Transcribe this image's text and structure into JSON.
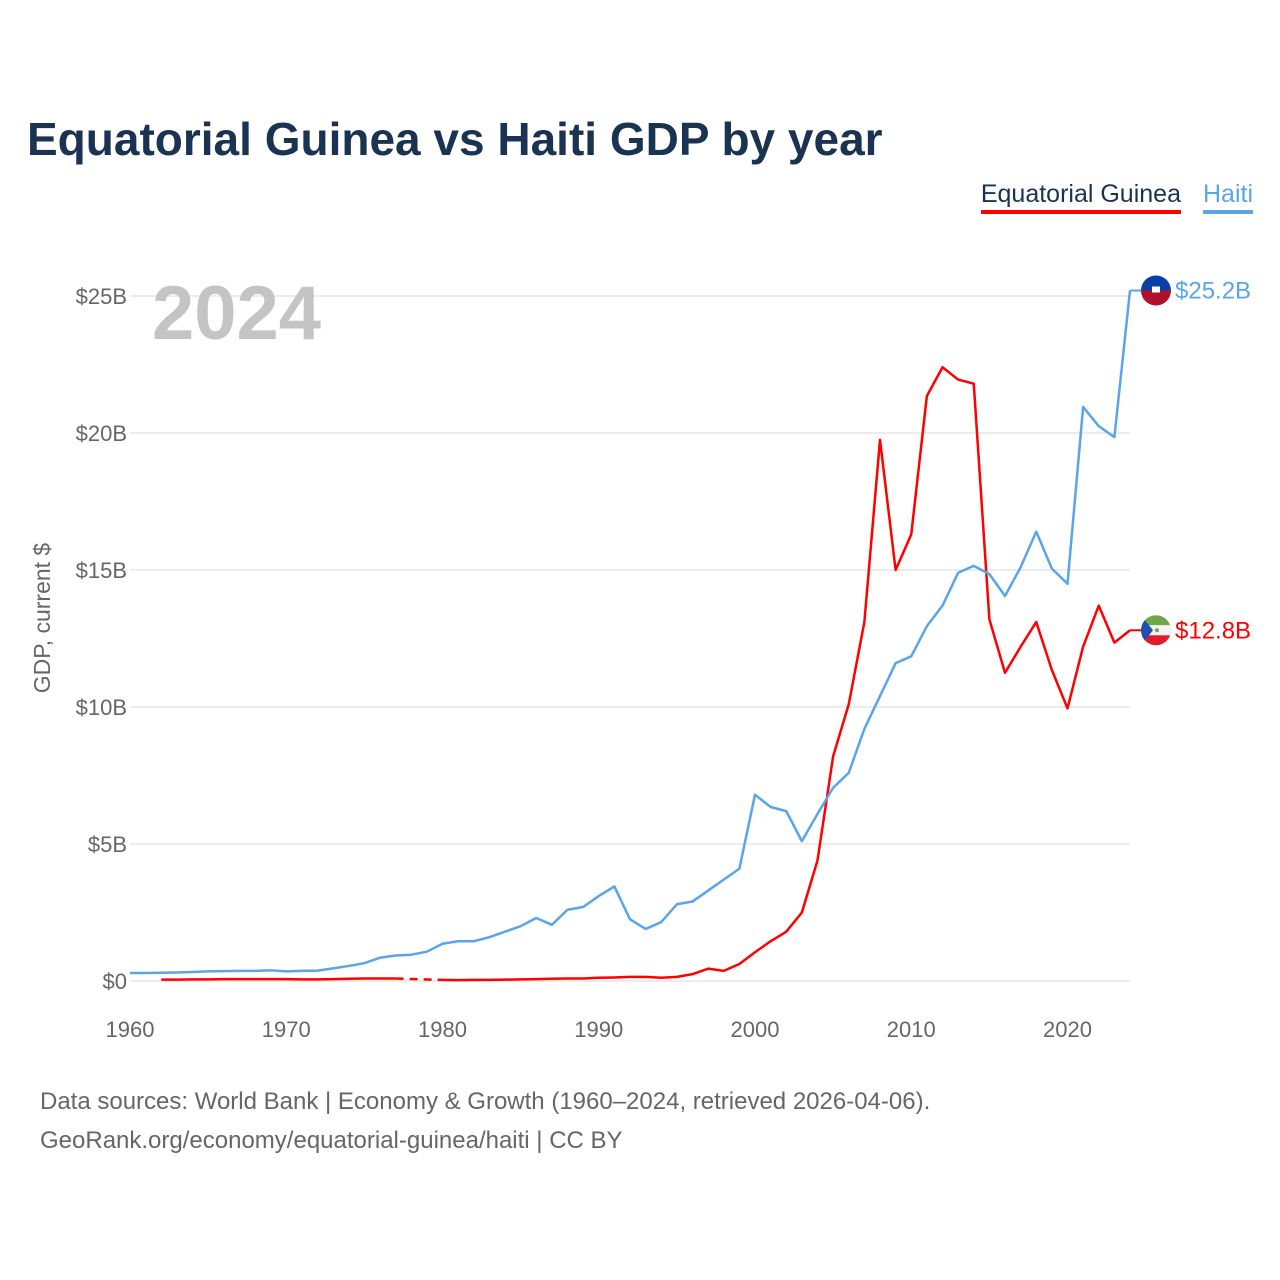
{
  "title": "Equatorial Guinea vs Haiti GDP by year",
  "legend": [
    "Equatorial Guinea",
    "Haiti"
  ],
  "year_watermark": "2024",
  "footer": {
    "line1": "Data sources: World Bank | Economy & Growth (1960–2024, retrieved 2026-04-06).",
    "line2": "GeoRank.org/economy/equatorial-guinea/haiti | CC BY"
  },
  "chart_data": {
    "type": "line",
    "title": "Equatorial Guinea vs Haiti GDP by year",
    "xlabel": "",
    "ylabel": "GDP, current $",
    "xlim": [
      1960,
      2024
    ],
    "ylim": [
      0,
      25
    ],
    "x_ticks": [
      1960,
      1970,
      1980,
      1990,
      2000,
      2010,
      2020
    ],
    "y_ticks": [
      0,
      5,
      10,
      15,
      20,
      25
    ],
    "y_tick_labels": [
      "$0",
      "$5B",
      "$10B",
      "$15B",
      "$20B",
      "$25B"
    ],
    "grid": true,
    "legend_position": "top-right",
    "x": [
      1960,
      1961,
      1962,
      1963,
      1964,
      1965,
      1966,
      1967,
      1968,
      1969,
      1970,
      1971,
      1972,
      1973,
      1974,
      1975,
      1976,
      1977,
      1978,
      1979,
      1980,
      1981,
      1982,
      1983,
      1984,
      1985,
      1986,
      1987,
      1988,
      1989,
      1990,
      1991,
      1992,
      1993,
      1994,
      1995,
      1996,
      1997,
      1998,
      1999,
      2000,
      2001,
      2002,
      2003,
      2004,
      2005,
      2006,
      2007,
      2008,
      2009,
      2010,
      2011,
      2012,
      2013,
      2014,
      2015,
      2016,
      2017,
      2018,
      2019,
      2020,
      2021,
      2022,
      2023,
      2024
    ],
    "series": [
      {
        "name": "Equatorial Guinea",
        "color": "#ff0000",
        "end_label": "$12.8B",
        "flag": "equatorial-guinea",
        "values": [
          null,
          null,
          0.05,
          0.05,
          0.06,
          0.06,
          0.07,
          0.07,
          0.07,
          0.07,
          0.07,
          0.06,
          0.06,
          0.07,
          0.08,
          0.09,
          0.09,
          0.09,
          null,
          null,
          0.04,
          0.03,
          0.04,
          0.04,
          0.05,
          0.06,
          0.07,
          0.08,
          0.09,
          0.09,
          0.12,
          0.13,
          0.15,
          0.15,
          0.12,
          0.15,
          0.25,
          0.45,
          0.37,
          0.62,
          1.05,
          1.45,
          1.8,
          2.5,
          4.4,
          8.2,
          10.1,
          13.1,
          19.75,
          15.0,
          16.3,
          21.35,
          22.4,
          21.95,
          21.8,
          13.2,
          11.25,
          12.2,
          13.1,
          11.35,
          9.95,
          12.2,
          13.7,
          12.35,
          12.8
        ]
      },
      {
        "name": "Haiti",
        "color": "#5aa5ea",
        "end_label": "$25.2B",
        "flag": "haiti",
        "values": [
          0.29,
          0.29,
          0.3,
          0.31,
          0.33,
          0.35,
          0.36,
          0.37,
          0.37,
          0.39,
          0.35,
          0.37,
          0.38,
          0.46,
          0.55,
          0.65,
          0.85,
          0.93,
          0.96,
          1.07,
          1.36,
          1.45,
          1.45,
          1.6,
          1.8,
          2.0,
          2.3,
          2.05,
          2.6,
          2.7,
          3.1,
          3.45,
          2.25,
          1.9,
          2.15,
          2.8,
          2.9,
          3.3,
          3.7,
          4.1,
          6.8,
          6.35,
          6.2,
          5.1,
          6.1,
          7.05,
          7.6,
          9.2,
          10.4,
          11.6,
          11.85,
          12.95,
          13.7,
          14.9,
          15.15,
          14.85,
          14.05,
          15.1,
          16.4,
          15.05,
          14.5,
          20.95,
          20.25,
          19.85,
          25.2
        ]
      }
    ]
  }
}
